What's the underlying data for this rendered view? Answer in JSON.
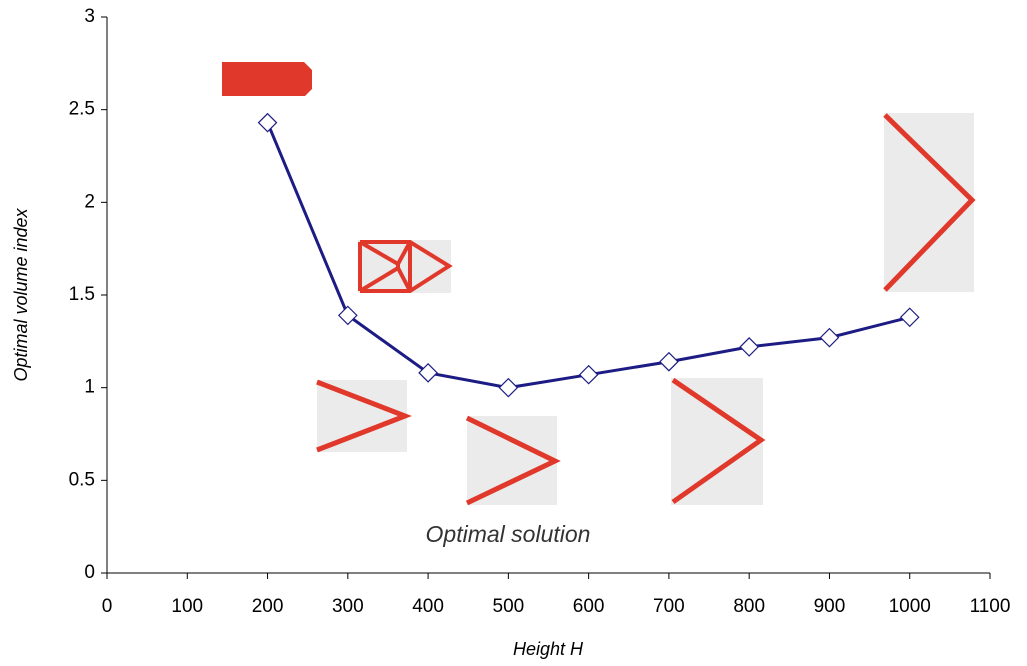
{
  "chart_data": {
    "type": "line",
    "x_label": "Height H",
    "y_label": "Optimal volume index",
    "annotation": "Optimal solution",
    "x": [
      200,
      300,
      400,
      500,
      600,
      700,
      800,
      900,
      1000
    ],
    "values": [
      2.43,
      1.39,
      1.08,
      1.0,
      1.07,
      1.14,
      1.22,
      1.27,
      1.38
    ],
    "color": "#1c1c84",
    "xlim": [
      0,
      1100
    ],
    "xticks": [
      0,
      100,
      200,
      300,
      400,
      500,
      600,
      700,
      800,
      900,
      1000,
      1100
    ],
    "ylim": [
      0,
      3
    ],
    "yticks": [
      0,
      0.5,
      1,
      1.5,
      2,
      2.5,
      3
    ]
  }
}
